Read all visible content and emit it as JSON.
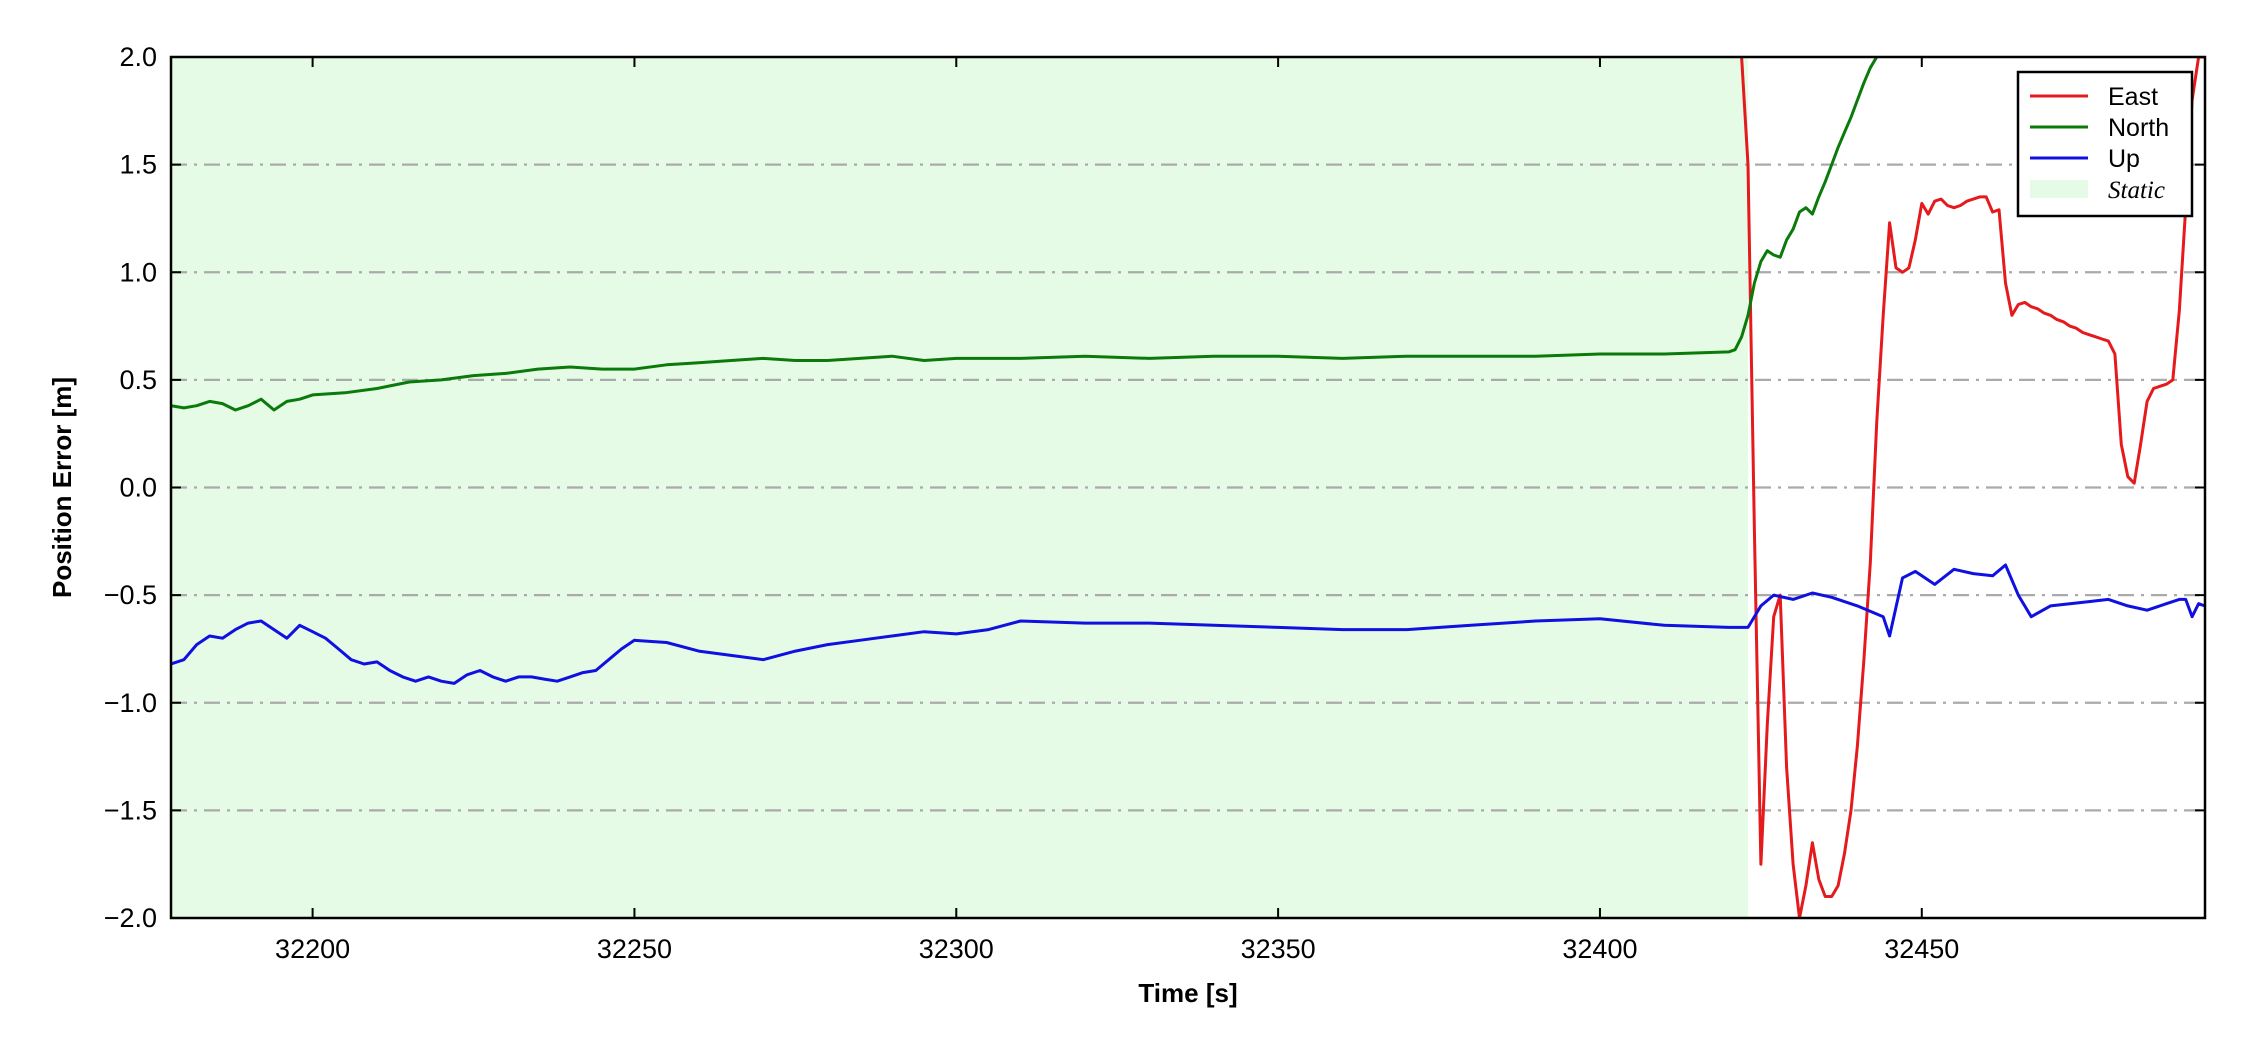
{
  "chart_data": {
    "type": "line",
    "title": "",
    "xlabel": "Time [s]",
    "ylabel": "Position Error [m]",
    "xlim": [
      32178,
      32494
    ],
    "ylim": [
      -2.0,
      2.0
    ],
    "xticks": [
      32200,
      32250,
      32300,
      32350,
      32400,
      32450
    ],
    "xtick_labels": [
      "32200",
      "32250",
      "32300",
      "32350",
      "32400",
      "32450"
    ],
    "yticks": [
      2.0,
      1.5,
      1.0,
      0.5,
      0.0,
      -0.5,
      -1.0,
      -1.5,
      -2.0
    ],
    "ytick_labels": [
      "2.0",
      "1.5",
      "1.0",
      "0.5",
      "0.0",
      "−0.5",
      "−1.0",
      "−1.5",
      "−2.0"
    ],
    "grid": {
      "axis": "y",
      "style": "dash-dot",
      "color": "#aaaaaa"
    },
    "legend_position": "top-right",
    "static_region": {
      "label": "Static",
      "x_start": 32178,
      "x_end": 32423,
      "color": "#e6fbe6"
    },
    "series": [
      {
        "name": "East",
        "color": "#e41a1c",
        "x": [
          32422,
          32423,
          32424,
          32425,
          32426,
          32427,
          32428,
          32429,
          32430,
          32431,
          32432,
          32433,
          32434,
          32435,
          32436,
          32437,
          32438,
          32439,
          32440,
          32441,
          32442,
          32443,
          32444,
          32445,
          32446,
          32447,
          32448,
          32449,
          32450,
          32451,
          32452,
          32453,
          32454,
          32455,
          32456,
          32457,
          32458,
          32459,
          32460,
          32461,
          32462,
          32463,
          32464,
          32465,
          32466,
          32467,
          32468,
          32469,
          32470,
          32471,
          32472,
          32473,
          32474,
          32475,
          32476,
          32477,
          32478,
          32479,
          32480,
          32481,
          32482,
          32483,
          32484,
          32485,
          32486,
          32487,
          32488,
          32489,
          32490,
          32491,
          32492,
          32493,
          32494
        ],
        "values": [
          2.0,
          1.5,
          -0.2,
          -1.75,
          -1.1,
          -0.6,
          -0.5,
          -1.3,
          -1.75,
          -2.0,
          -1.85,
          -1.65,
          -1.82,
          -1.9,
          -1.9,
          -1.85,
          -1.7,
          -1.5,
          -1.2,
          -0.8,
          -0.35,
          0.3,
          0.8,
          1.23,
          1.02,
          1.0,
          1.02,
          1.15,
          1.32,
          1.27,
          1.33,
          1.34,
          1.31,
          1.3,
          1.31,
          1.33,
          1.34,
          1.35,
          1.35,
          1.28,
          1.29,
          0.95,
          0.8,
          0.85,
          0.86,
          0.84,
          0.83,
          0.81,
          0.8,
          0.78,
          0.77,
          0.75,
          0.74,
          0.72,
          0.71,
          0.7,
          0.69,
          0.68,
          0.62,
          0.2,
          0.05,
          0.02,
          0.2,
          0.4,
          0.46,
          0.47,
          0.48,
          0.5,
          0.82,
          1.3,
          1.8,
          2.0,
          2.0
        ]
      },
      {
        "name": "North",
        "color": "#0a7a0a",
        "x": [
          32178,
          32180,
          32182,
          32184,
          32186,
          32188,
          32190,
          32192,
          32194,
          32196,
          32198,
          32200,
          32205,
          32210,
          32215,
          32220,
          32225,
          32230,
          32235,
          32240,
          32245,
          32250,
          32255,
          32260,
          32265,
          32270,
          32275,
          32280,
          32285,
          32290,
          32295,
          32300,
          32310,
          32320,
          32330,
          32340,
          32350,
          32360,
          32370,
          32380,
          32390,
          32400,
          32410,
          32420,
          32421,
          32422,
          32423,
          32424,
          32425,
          32426,
          32427,
          32428,
          32429,
          32430,
          32431,
          32432,
          32433,
          32434,
          32435,
          32436,
          32437,
          32438,
          32439,
          32440,
          32441,
          32442,
          32443
        ],
        "values": [
          0.38,
          0.37,
          0.38,
          0.4,
          0.39,
          0.36,
          0.38,
          0.41,
          0.36,
          0.4,
          0.41,
          0.43,
          0.44,
          0.46,
          0.49,
          0.5,
          0.52,
          0.53,
          0.55,
          0.56,
          0.55,
          0.55,
          0.57,
          0.58,
          0.59,
          0.6,
          0.59,
          0.59,
          0.6,
          0.61,
          0.59,
          0.6,
          0.6,
          0.61,
          0.6,
          0.61,
          0.61,
          0.6,
          0.61,
          0.61,
          0.61,
          0.62,
          0.62,
          0.63,
          0.64,
          0.7,
          0.8,
          0.95,
          1.05,
          1.1,
          1.08,
          1.07,
          1.15,
          1.2,
          1.28,
          1.3,
          1.27,
          1.35,
          1.42,
          1.5,
          1.58,
          1.65,
          1.72,
          1.8,
          1.88,
          1.95,
          2.0
        ]
      },
      {
        "name": "Up",
        "color": "#1010e0",
        "x": [
          32178,
          32180,
          32182,
          32184,
          32186,
          32188,
          32190,
          32192,
          32194,
          32196,
          32198,
          32200,
          32202,
          32204,
          32206,
          32208,
          32210,
          32212,
          32214,
          32216,
          32218,
          32220,
          32222,
          32224,
          32226,
          32228,
          32230,
          32232,
          32234,
          32236,
          32238,
          32240,
          32242,
          32244,
          32246,
          32248,
          32250,
          32255,
          32260,
          32265,
          32270,
          32275,
          32280,
          32285,
          32290,
          32295,
          32300,
          32305,
          32310,
          32320,
          32330,
          32340,
          32350,
          32360,
          32370,
          32380,
          32390,
          32400,
          32410,
          32420,
          32423,
          32425,
          32427,
          32430,
          32433,
          32436,
          32440,
          32444,
          32445,
          32447,
          32449,
          32452,
          32455,
          32458,
          32461,
          32463,
          32465,
          32467,
          32470,
          32473,
          32476,
          32479,
          32482,
          32485,
          32488,
          32490,
          32491,
          32492,
          32493,
          32494
        ],
        "values": [
          -0.82,
          -0.8,
          -0.73,
          -0.69,
          -0.7,
          -0.66,
          -0.63,
          -0.62,
          -0.66,
          -0.7,
          -0.64,
          -0.67,
          -0.7,
          -0.75,
          -0.8,
          -0.82,
          -0.81,
          -0.85,
          -0.88,
          -0.9,
          -0.88,
          -0.9,
          -0.91,
          -0.87,
          -0.85,
          -0.88,
          -0.9,
          -0.88,
          -0.88,
          -0.89,
          -0.9,
          -0.88,
          -0.86,
          -0.85,
          -0.8,
          -0.75,
          -0.71,
          -0.72,
          -0.76,
          -0.78,
          -0.8,
          -0.76,
          -0.73,
          -0.71,
          -0.69,
          -0.67,
          -0.68,
          -0.66,
          -0.62,
          -0.63,
          -0.63,
          -0.64,
          -0.65,
          -0.66,
          -0.66,
          -0.64,
          -0.62,
          -0.61,
          -0.64,
          -0.65,
          -0.65,
          -0.55,
          -0.5,
          -0.52,
          -0.49,
          -0.51,
          -0.55,
          -0.6,
          -0.69,
          -0.42,
          -0.39,
          -0.45,
          -0.38,
          -0.4,
          -0.41,
          -0.36,
          -0.5,
          -0.6,
          -0.55,
          -0.54,
          -0.53,
          -0.52,
          -0.55,
          -0.57,
          -0.54,
          -0.52,
          -0.52,
          -0.6,
          -0.54,
          -0.55
        ]
      }
    ]
  }
}
